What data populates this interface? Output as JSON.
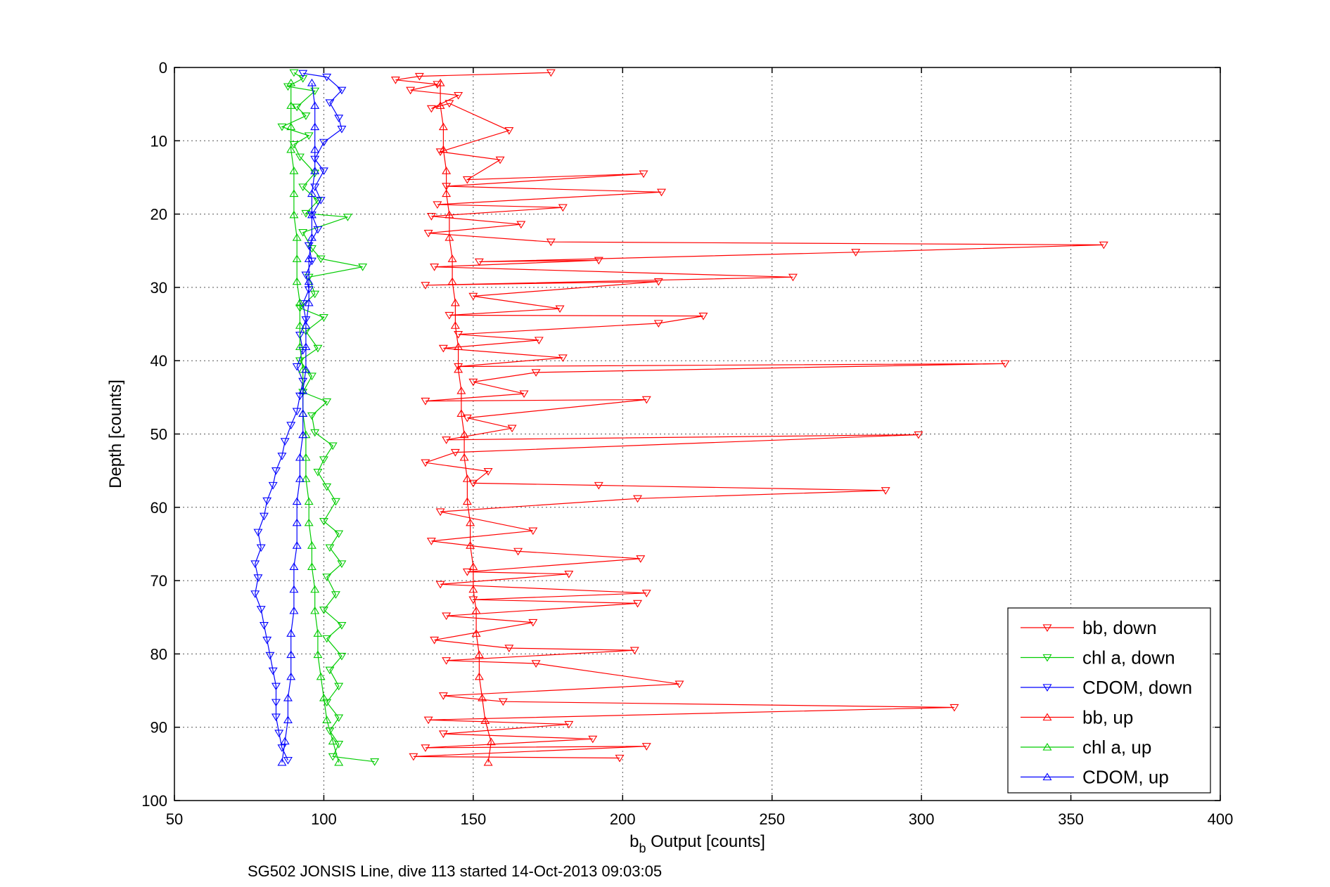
{
  "chart_data": {
    "type": "line",
    "xlabel_main": "b",
    "xlabel_sub": "b",
    "xlabel_rest": " Output [counts]",
    "ylabel": "Depth [counts]",
    "caption": "SG502 JONSIS Line, dive 113 started 14-Oct-2013 09:03:05",
    "xlim": [
      50,
      400
    ],
    "ylim": [
      0,
      100
    ],
    "y_reversed": true,
    "xticks": [
      50,
      100,
      150,
      200,
      250,
      300,
      350,
      400
    ],
    "yticks": [
      0,
      10,
      20,
      30,
      40,
      50,
      60,
      70,
      80,
      90,
      100
    ],
    "xtick_labels": [
      "50",
      "100",
      "150",
      "200",
      "250",
      "300",
      "350",
      "400"
    ],
    "ytick_labels": [
      "0",
      "10",
      "20",
      "30",
      "40",
      "50",
      "60",
      "70",
      "80",
      "90",
      "100"
    ],
    "grid": true,
    "legend_position": "bottom-right",
    "series": [
      {
        "name": "bb, down",
        "color": "#ff0000",
        "marker": "triangle-down",
        "points": [
          [
            176,
            0.7
          ],
          [
            132,
            1.2
          ],
          [
            124,
            1.7
          ],
          [
            138,
            2.3
          ],
          [
            129,
            3.1
          ],
          [
            145,
            3.8
          ],
          [
            136,
            5.6
          ],
          [
            142,
            4.9
          ],
          [
            162,
            8.6
          ],
          [
            139,
            11.5
          ],
          [
            159,
            12.6
          ],
          [
            148,
            15.3
          ],
          [
            207,
            14.5
          ],
          [
            141,
            16.2
          ],
          [
            213,
            17.0
          ],
          [
            138,
            18.7
          ],
          [
            180,
            19.1
          ],
          [
            136,
            20.3
          ],
          [
            166,
            21.4
          ],
          [
            135,
            22.6
          ],
          [
            176,
            23.8
          ],
          [
            361,
            24.2
          ],
          [
            278,
            25.2
          ],
          [
            152,
            26.5
          ],
          [
            192,
            26.3
          ],
          [
            137,
            27.2
          ],
          [
            257,
            28.6
          ],
          [
            134,
            29.7
          ],
          [
            212,
            29.2
          ],
          [
            150,
            31.2
          ],
          [
            179,
            32.9
          ],
          [
            142,
            33.8
          ],
          [
            227,
            33.9
          ],
          [
            212,
            34.9
          ],
          [
            145,
            36.4
          ],
          [
            172,
            37.2
          ],
          [
            140,
            38.3
          ],
          [
            180,
            39.6
          ],
          [
            145,
            40.8
          ],
          [
            328,
            40.4
          ],
          [
            171,
            41.6
          ],
          [
            150,
            42.9
          ],
          [
            167,
            44.5
          ],
          [
            134,
            45.5
          ],
          [
            208,
            45.3
          ],
          [
            148,
            47.8
          ],
          [
            163,
            49.2
          ],
          [
            141,
            50.8
          ],
          [
            299,
            50.1
          ],
          [
            144,
            52.5
          ],
          [
            134,
            53.9
          ],
          [
            155,
            55.1
          ],
          [
            150,
            56.7
          ],
          [
            192,
            57.0
          ],
          [
            288,
            57.7
          ],
          [
            205,
            58.8
          ],
          [
            139,
            60.6
          ],
          [
            170,
            63.2
          ],
          [
            136,
            64.6
          ],
          [
            165,
            66.0
          ],
          [
            206,
            67.0
          ],
          [
            148,
            68.8
          ],
          [
            182,
            69.1
          ],
          [
            139,
            70.5
          ],
          [
            208,
            71.7
          ],
          [
            150,
            72.6
          ],
          [
            205,
            73.1
          ],
          [
            141,
            74.8
          ],
          [
            170,
            75.7
          ],
          [
            137,
            78.1
          ],
          [
            162,
            79.2
          ],
          [
            204,
            79.5
          ],
          [
            141,
            80.9
          ],
          [
            171,
            81.3
          ],
          [
            219,
            84.1
          ],
          [
            140,
            85.7
          ],
          [
            160,
            86.5
          ],
          [
            311,
            87.3
          ],
          [
            135,
            89.0
          ],
          [
            182,
            89.6
          ],
          [
            140,
            90.9
          ],
          [
            190,
            91.6
          ],
          [
            134,
            92.8
          ],
          [
            208,
            92.6
          ],
          [
            130,
            94.0
          ],
          [
            199,
            94.2
          ]
        ]
      },
      {
        "name": "chl a, down",
        "color": "#00cc00",
        "marker": "triangle-down",
        "points": [
          [
            90,
            0.7
          ],
          [
            93,
            1.5
          ],
          [
            88,
            2.6
          ],
          [
            97,
            3.2
          ],
          [
            91,
            5.4
          ],
          [
            94,
            6.6
          ],
          [
            86,
            8.1
          ],
          [
            95,
            9.3
          ],
          [
            90,
            10.5
          ],
          [
            92,
            12.2
          ],
          [
            97,
            14.4
          ],
          [
            93,
            16.3
          ],
          [
            98,
            18.2
          ],
          [
            94,
            19.9
          ],
          [
            108,
            20.4
          ],
          [
            93,
            22.5
          ],
          [
            96,
            24.7
          ],
          [
            99,
            26.1
          ],
          [
            113,
            27.2
          ],
          [
            95,
            28.6
          ],
          [
            97,
            30.9
          ],
          [
            92,
            32.8
          ],
          [
            100,
            34.1
          ],
          [
            94,
            36.0
          ],
          [
            98,
            38.3
          ],
          [
            92,
            40.0
          ],
          [
            96,
            42.1
          ],
          [
            93,
            44.3
          ],
          [
            101,
            45.6
          ],
          [
            96,
            47.5
          ],
          [
            97,
            49.8
          ],
          [
            103,
            51.6
          ],
          [
            100,
            53.5
          ],
          [
            98,
            55.2
          ],
          [
            101,
            57.2
          ],
          [
            104,
            59.2
          ],
          [
            100,
            61.9
          ],
          [
            105,
            63.6
          ],
          [
            102,
            65.5
          ],
          [
            106,
            67.7
          ],
          [
            101,
            69.5
          ],
          [
            104,
            71.9
          ],
          [
            100,
            74.0
          ],
          [
            106,
            76.1
          ],
          [
            101,
            77.9
          ],
          [
            106,
            80.3
          ],
          [
            102,
            82.2
          ],
          [
            105,
            84.4
          ],
          [
            101,
            86.6
          ],
          [
            105,
            88.7
          ],
          [
            102,
            90.5
          ],
          [
            105,
            92.3
          ],
          [
            103,
            94.0
          ],
          [
            117,
            94.7
          ]
        ]
      },
      {
        "name": "CDOM, down",
        "color": "#0000ff",
        "marker": "triangle-down",
        "points": [
          [
            93,
            0.8
          ],
          [
            101,
            1.3
          ],
          [
            106,
            3.1
          ],
          [
            102,
            4.8
          ],
          [
            105,
            6.9
          ],
          [
            106,
            8.4
          ],
          [
            100,
            10.2
          ],
          [
            97,
            12.5
          ],
          [
            100,
            14.1
          ],
          [
            97,
            16.3
          ],
          [
            99,
            18.1
          ],
          [
            96,
            20.1
          ],
          [
            98,
            22.1
          ],
          [
            95,
            24.3
          ],
          [
            96,
            26.4
          ],
          [
            94,
            28.3
          ],
          [
            95,
            30.3
          ],
          [
            93,
            32.2
          ],
          [
            94,
            34.4
          ],
          [
            92,
            36.5
          ],
          [
            93,
            38.6
          ],
          [
            91,
            40.8
          ],
          [
            93,
            42.8
          ],
          [
            92,
            44.8
          ],
          [
            91,
            46.9
          ],
          [
            89,
            48.8
          ],
          [
            87,
            51.0
          ],
          [
            86,
            53.0
          ],
          [
            84,
            55.0
          ],
          [
            83,
            57.0
          ],
          [
            81,
            59.1
          ],
          [
            80,
            61.2
          ],
          [
            78,
            63.4
          ],
          [
            79,
            65.5
          ],
          [
            77,
            67.7
          ],
          [
            78,
            69.6
          ],
          [
            77,
            71.8
          ],
          [
            79,
            73.9
          ],
          [
            80,
            76.1
          ],
          [
            81,
            78.1
          ],
          [
            82,
            80.2
          ],
          [
            83,
            82.3
          ],
          [
            84,
            84.4
          ],
          [
            84,
            86.6
          ],
          [
            84,
            88.6
          ],
          [
            85,
            90.8
          ],
          [
            86,
            92.8
          ],
          [
            88,
            94.5
          ]
        ]
      },
      {
        "name": "bb, up",
        "color": "#ff0000",
        "marker": "triangle-up",
        "points": [
          [
            155,
            94.8
          ],
          [
            156,
            92.0
          ],
          [
            154,
            89.1
          ],
          [
            153,
            86.0
          ],
          [
            152,
            83.1
          ],
          [
            152,
            80.1
          ],
          [
            151,
            77.2
          ],
          [
            151,
            74.1
          ],
          [
            150,
            71.2
          ],
          [
            150,
            68.1
          ],
          [
            149,
            65.2
          ],
          [
            149,
            62.1
          ],
          [
            148,
            59.2
          ],
          [
            148,
            56.1
          ],
          [
            147,
            53.2
          ],
          [
            147,
            50.1
          ],
          [
            146,
            47.2
          ],
          [
            146,
            44.1
          ],
          [
            145,
            41.2
          ],
          [
            145,
            38.1
          ],
          [
            144,
            35.2
          ],
          [
            144,
            32.1
          ],
          [
            143,
            29.2
          ],
          [
            143,
            26.1
          ],
          [
            142,
            23.2
          ],
          [
            142,
            20.1
          ],
          [
            141,
            17.2
          ],
          [
            141,
            14.1
          ],
          [
            140,
            11.2
          ],
          [
            140,
            8.1
          ],
          [
            139,
            5.2
          ],
          [
            139,
            2.1
          ]
        ]
      },
      {
        "name": "chl a, up",
        "color": "#00cc00",
        "marker": "triangle-up",
        "points": [
          [
            105,
            94.8
          ],
          [
            103,
            91.9
          ],
          [
            101,
            89.0
          ],
          [
            100,
            86.0
          ],
          [
            99,
            83.1
          ],
          [
            98,
            80.1
          ],
          [
            98,
            77.2
          ],
          [
            97,
            74.1
          ],
          [
            97,
            71.2
          ],
          [
            96,
            68.1
          ],
          [
            96,
            65.2
          ],
          [
            95,
            62.1
          ],
          [
            95,
            59.2
          ],
          [
            94,
            56.1
          ],
          [
            94,
            53.2
          ],
          [
            94,
            50.1
          ],
          [
            93,
            47.2
          ],
          [
            93,
            44.1
          ],
          [
            93,
            41.2
          ],
          [
            92,
            38.1
          ],
          [
            92,
            35.2
          ],
          [
            92,
            32.1
          ],
          [
            91,
            29.2
          ],
          [
            91,
            26.1
          ],
          [
            91,
            23.2
          ],
          [
            90,
            20.1
          ],
          [
            90,
            17.2
          ],
          [
            90,
            14.1
          ],
          [
            89,
            11.2
          ],
          [
            89,
            8.1
          ],
          [
            89,
            5.2
          ],
          [
            89,
            2.1
          ]
        ]
      },
      {
        "name": "CDOM, up",
        "color": "#0000ff",
        "marker": "triangle-up",
        "points": [
          [
            86,
            94.8
          ],
          [
            87,
            91.9
          ],
          [
            88,
            89.0
          ],
          [
            88,
            86.0
          ],
          [
            89,
            83.1
          ],
          [
            89,
            80.1
          ],
          [
            89,
            77.2
          ],
          [
            90,
            74.1
          ],
          [
            90,
            71.2
          ],
          [
            90,
            68.1
          ],
          [
            91,
            65.2
          ],
          [
            91,
            62.1
          ],
          [
            91,
            59.2
          ],
          [
            92,
            56.1
          ],
          [
            92,
            53.2
          ],
          [
            93,
            50.1
          ],
          [
            93,
            47.2
          ],
          [
            93,
            44.1
          ],
          [
            94,
            41.2
          ],
          [
            94,
            38.1
          ],
          [
            94,
            35.2
          ],
          [
            95,
            32.1
          ],
          [
            95,
            29.2
          ],
          [
            95,
            26.1
          ],
          [
            96,
            23.2
          ],
          [
            96,
            20.1
          ],
          [
            96,
            17.2
          ],
          [
            97,
            14.1
          ],
          [
            97,
            11.2
          ],
          [
            97,
            8.1
          ],
          [
            97,
            5.2
          ],
          [
            96,
            2.1
          ]
        ]
      }
    ]
  }
}
